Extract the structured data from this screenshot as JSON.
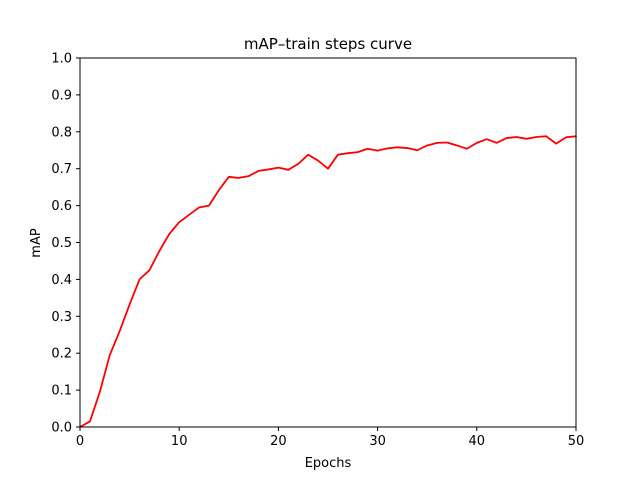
{
  "chart_data": {
    "type": "line",
    "title": "mAP–train steps curve",
    "xlabel": "Epochs",
    "ylabel": "mAP",
    "xlim": [
      0,
      50
    ],
    "ylim": [
      0,
      1.0
    ],
    "xticks": [
      "0",
      "10",
      "20",
      "30",
      "40",
      "50"
    ],
    "yticks": [
      "0.0",
      "0.1",
      "0.2",
      "0.3",
      "0.4",
      "0.5",
      "0.6",
      "0.7",
      "0.8",
      "0.9",
      "1.0"
    ],
    "grid": false,
    "series": [
      {
        "color": "#ff0000",
        "x": [
          0,
          1,
          2,
          3,
          4,
          5,
          6,
          7,
          8,
          9,
          10,
          11,
          12,
          13,
          14,
          15,
          16,
          17,
          18,
          19,
          20,
          21,
          22,
          23,
          24,
          25,
          26,
          27,
          28,
          29,
          30,
          31,
          32,
          33,
          34,
          35,
          36,
          37,
          38,
          39,
          40,
          41,
          42,
          43,
          44,
          45,
          46,
          47,
          48,
          49,
          50
        ],
        "y": [
          0.0,
          0.015,
          0.095,
          0.195,
          0.26,
          0.332,
          0.4,
          0.425,
          0.477,
          0.523,
          0.555,
          0.575,
          0.595,
          0.6,
          0.642,
          0.678,
          0.675,
          0.68,
          0.694,
          0.698,
          0.703,
          0.697,
          0.713,
          0.738,
          0.722,
          0.7,
          0.738,
          0.742,
          0.745,
          0.754,
          0.749,
          0.755,
          0.758,
          0.756,
          0.75,
          0.763,
          0.77,
          0.771,
          0.763,
          0.754,
          0.77,
          0.78,
          0.77,
          0.783,
          0.786,
          0.781,
          0.786,
          0.788,
          0.768,
          0.785,
          0.788
        ]
      }
    ]
  }
}
